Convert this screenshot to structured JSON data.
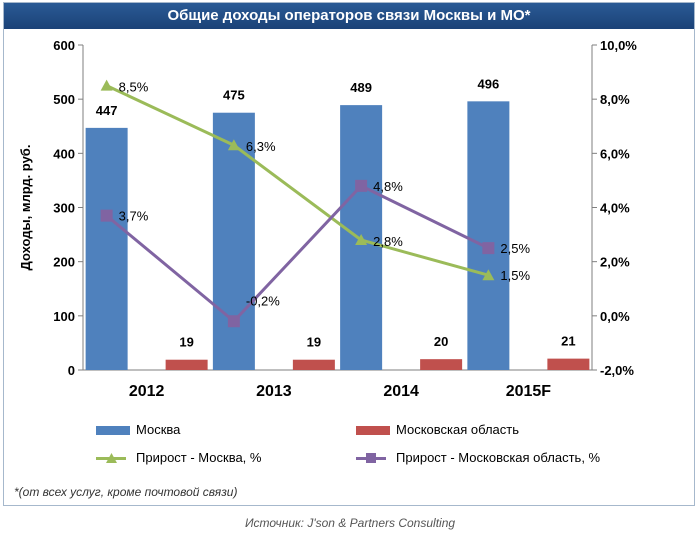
{
  "title": "Общие доходы операторов связи Москвы и МО*",
  "note": "*(от всех услуг, кроме почтовой связи)",
  "source": "Источник: J'son & Partners Consulting",
  "colors": {
    "moscow_bar": "#4f81bd",
    "region_bar": "#c0504d",
    "moscow_line": "#9bbb59",
    "region_line": "#8064a2"
  },
  "legend": {
    "moscow": "Москва",
    "region": "Московская область",
    "growth_moscow": "Прирост - Москва, %",
    "growth_region": "Прирост - Московская область, %"
  },
  "chart_data": {
    "type": "bar",
    "title": "Общие доходы операторов связи Москвы и МО*",
    "categories": [
      "2012",
      "2013",
      "2014",
      "2015F"
    ],
    "ylabel": "Доходы, млрд. руб.",
    "ylim": [
      0,
      600
    ],
    "y_ticks": [
      "0",
      "100",
      "200",
      "300",
      "400",
      "500",
      "600"
    ],
    "y2lim": [
      -2,
      10
    ],
    "y2_ticks": [
      "-2,0%",
      "0,0%",
      "2,0%",
      "4,0%",
      "6,0%",
      "8,0%",
      "10,0%"
    ],
    "grid": false,
    "legend_position": "bottom",
    "series": [
      {
        "name": "Москва",
        "type": "bar",
        "axis": "left",
        "values": [
          447,
          475,
          489,
          496
        ],
        "labels": [
          "447",
          "475",
          "489",
          "496"
        ]
      },
      {
        "name": "Московская область",
        "type": "bar",
        "axis": "left",
        "values": [
          19,
          19,
          20,
          21
        ],
        "labels": [
          "19",
          "19",
          "20",
          "21"
        ]
      },
      {
        "name": "Прирост - Москва, %",
        "type": "line",
        "axis": "right",
        "values": [
          8.5,
          6.3,
          2.8,
          1.5
        ],
        "labels": [
          "8,5%",
          "6,3%",
          "2,8%",
          "1,5%"
        ]
      },
      {
        "name": "Прирост - Московская область, %",
        "type": "line",
        "axis": "right",
        "values": [
          3.7,
          -0.2,
          4.8,
          2.5
        ],
        "labels": [
          "3,7%",
          "-0,2%",
          "4,8%",
          "2,5%"
        ]
      }
    ]
  }
}
